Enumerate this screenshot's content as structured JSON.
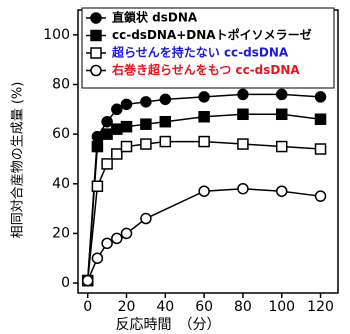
{
  "chart_data": {
    "type": "line",
    "x_label": "反応時間　（分）",
    "y_label": "相同対合産物の生成量 (%)",
    "x": [
      0,
      5,
      10,
      15,
      20,
      30,
      40,
      60,
      80,
      100,
      120
    ],
    "series": [
      {
        "name": "直鎖状 dsDNA",
        "color": "#000000",
        "label_color": "#000000",
        "marker": "circle",
        "filled": true,
        "values": [
          1,
          59,
          65,
          70,
          72,
          73,
          74,
          75,
          76,
          76,
          75
        ]
      },
      {
        "name": "cc-dsDNA+DNAトポイソメラーゼ",
        "color": "#000000",
        "label_color": "#000000",
        "marker": "square",
        "filled": true,
        "values": [
          1,
          55,
          60,
          62,
          63,
          64,
          65,
          67,
          68,
          68,
          66
        ]
      },
      {
        "name": "超らせんを持たない cc-dsDNA",
        "color": "#000000",
        "label_color": "#1a1adc",
        "marker": "square",
        "filled": false,
        "values": [
          1,
          39,
          48,
          52,
          55,
          56,
          57,
          57,
          56,
          55,
          54
        ]
      },
      {
        "name": "右巻き超らせんをもつ cc-dsDNA",
        "color": "#000000",
        "label_color": "#e8141e",
        "marker": "circle",
        "filled": false,
        "x": [
          0,
          5,
          10,
          15,
          20,
          30,
          60,
          80,
          100,
          120
        ],
        "values": [
          1,
          10,
          16,
          18,
          20,
          26,
          37,
          38,
          37,
          35
        ]
      }
    ],
    "xlim": [
      -5,
      129
    ],
    "ylim": [
      -4,
      110
    ],
    "xticks": [
      0,
      20,
      40,
      60,
      80,
      100,
      120
    ],
    "yticks": [
      0,
      20,
      40,
      60,
      80,
      100
    ]
  }
}
